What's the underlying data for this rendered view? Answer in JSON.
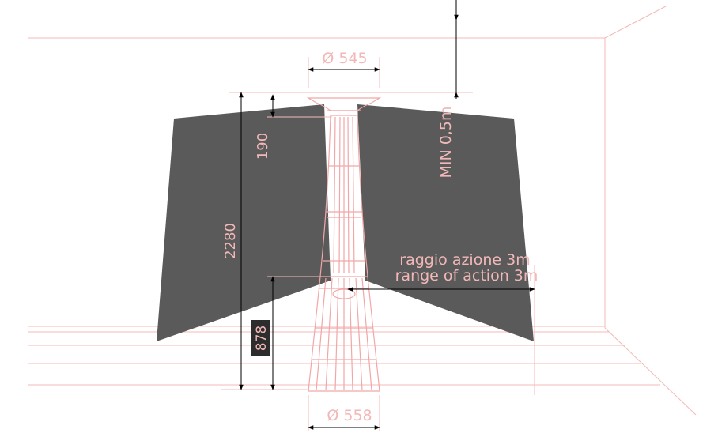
{
  "labels": {
    "top_diameter": "Ø 545",
    "bottom_diameter": "Ø 558",
    "min_clearance": "MIN 0,5m",
    "head_height": "190",
    "total_height": "2280",
    "base_height": "878",
    "range_it": "raggio azione 3m",
    "range_en": "range of action 3m"
  },
  "colors": {
    "line": "#f4b9b9",
    "heater": "#f1a7a7",
    "shadow": "#5a5a5a",
    "arrow": "#000000",
    "label_box": "#2d2d2d",
    "background": "#ffffff"
  }
}
